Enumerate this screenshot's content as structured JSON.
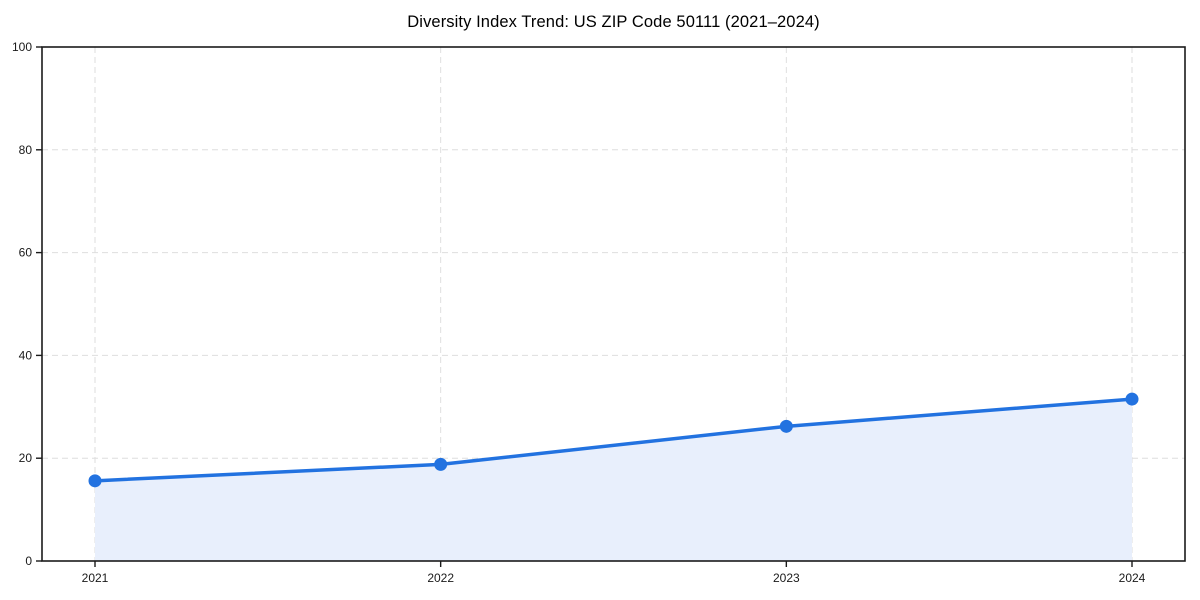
{
  "figure": {
    "background": "#ffffff"
  },
  "chart_data": {
    "type": "area",
    "title": "Diversity Index Trend: US ZIP Code 50111 (2021–2024)",
    "x": [
      "2021",
      "2022",
      "2023",
      "2024"
    ],
    "series": [
      {
        "name": "Diversity Index",
        "values": [
          15.6,
          18.8,
          26.2,
          31.5
        ]
      }
    ],
    "xlabel": "",
    "ylabel": "",
    "ylim": [
      0,
      100
    ],
    "yticks": [
      0,
      20,
      40,
      60,
      80,
      100
    ],
    "grid": "dashed-both-axes",
    "legend": "none",
    "marker": "circle",
    "colors": {
      "line": "#2272e0",
      "fill": "#e8effc",
      "grid": "#dedede",
      "axis": "#1a1a1a",
      "tick_label": "#1a1a1a",
      "title": "#000000"
    }
  }
}
